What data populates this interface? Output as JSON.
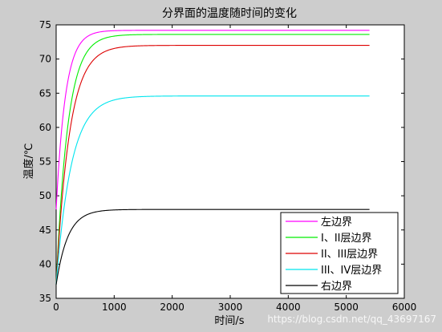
{
  "chart_data": {
    "type": "line",
    "title": "分界面的温度随时间的变化",
    "xlabel": "时间/s",
    "ylabel": "温度/℃",
    "xlim": [
      0,
      6000
    ],
    "ylim": [
      35,
      75
    ],
    "xticks": [
      0,
      1000,
      2000,
      3000,
      4000,
      5000,
      6000
    ],
    "yticks": [
      35,
      40,
      45,
      50,
      55,
      60,
      65,
      70,
      75
    ],
    "x_end": 5400,
    "legend_position": "bottom-right",
    "grid": false,
    "series": [
      {
        "name": "左边界",
        "color": "#ff00ff",
        "start": 48,
        "final": 74.2,
        "tau": 160
      },
      {
        "name": "I、II层边界",
        "color": "#00ee00",
        "start": 37,
        "final": 73.6,
        "tau": 200
      },
      {
        "name": "II、III层边界",
        "color": "#dd0000",
        "start": 37,
        "final": 72.0,
        "tau": 230
      },
      {
        "name": "III、IV层边界",
        "color": "#00e5ee",
        "start": 37,
        "final": 64.6,
        "tau": 260
      },
      {
        "name": "右边界",
        "color": "#000000",
        "start": 37,
        "final": 48.0,
        "tau": 200
      }
    ]
  },
  "watermark": "https://blog.csdn.net/qq_43697167"
}
